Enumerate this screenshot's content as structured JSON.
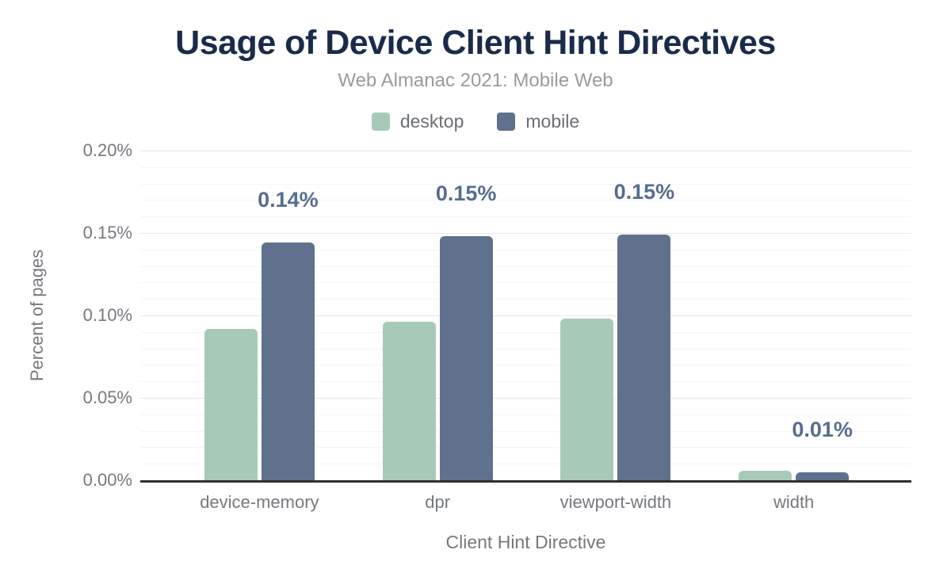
{
  "chart_data": {
    "type": "bar",
    "title": "Usage of Device Client Hint Directives",
    "subtitle": "Web Almanac 2021: Mobile Web",
    "xlabel": "Client Hint Directive",
    "ylabel": "Percent of pages",
    "categories": [
      "device-memory",
      "dpr",
      "viewport-width",
      "width"
    ],
    "series": [
      {
        "name": "desktop",
        "color": "#a7cab8",
        "values": [
          0.092,
          0.096,
          0.098,
          0.006
        ]
      },
      {
        "name": "mobile",
        "color": "#5f718d",
        "values": [
          0.144,
          0.148,
          0.149,
          0.005
        ]
      }
    ],
    "data_labels": {
      "on_series": "mobile",
      "texts": [
        "0.14%",
        "0.15%",
        "0.15%",
        "0.01%"
      ]
    },
    "y_axis": {
      "min": 0,
      "max": 0.2,
      "major_tick_step": 0.05,
      "minor_tick_step": 0.01,
      "tick_labels": [
        "0.20%",
        "0.15%",
        "0.10%",
        "0.05%",
        "0.00%"
      ]
    },
    "legend_position": "top",
    "grid": true
  },
  "style": {
    "background": "#ffffff",
    "title_color": "#1a2b4a",
    "subtitle_color": "#9b9b9b",
    "axis_text_color": "#75797e",
    "data_label_color": "#576d90",
    "major_grid_color": "#e7e7e7",
    "minor_grid_color": "#f5f5f5",
    "axis_line_color": "#2f2f2f"
  }
}
